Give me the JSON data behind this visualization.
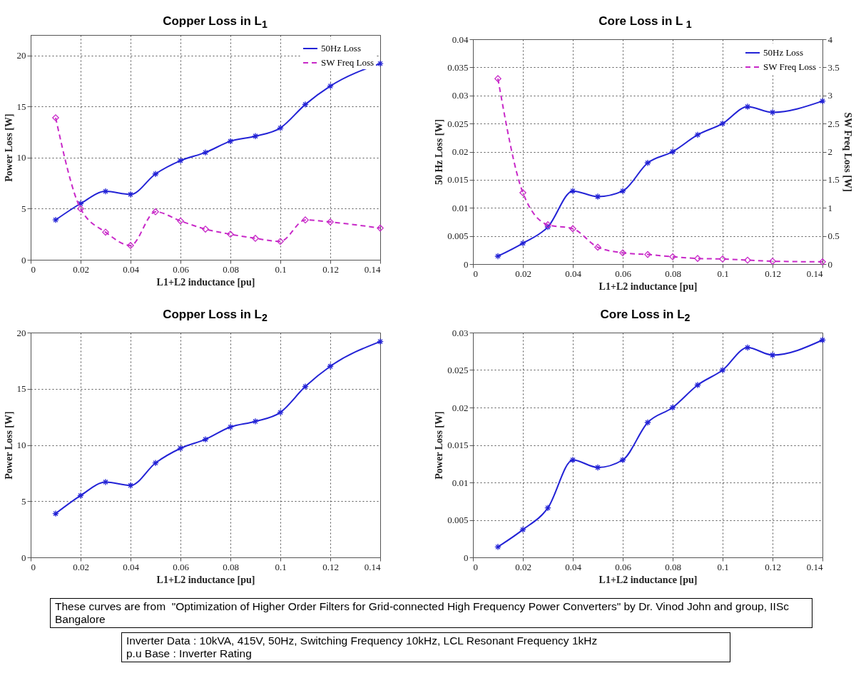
{
  "chart_data": [
    {
      "type": "line",
      "title": "Copper Loss in L$_{1}$",
      "xlabel": "L1+L2 inductance [pu]",
      "ylabel": "Power Loss [W]",
      "x": [
        0.01,
        0.02,
        0.03,
        0.04,
        0.05,
        0.06,
        0.07,
        0.08,
        0.09,
        0.1,
        0.11,
        0.12,
        0.14
      ],
      "series": [
        {
          "name": "50Hz Loss",
          "color": "#2323d6",
          "marker": "cross",
          "line_style": "solid",
          "values": [
            3.9,
            5.5,
            6.7,
            6.4,
            8.4,
            9.7,
            10.5,
            11.6,
            12.1,
            12.9,
            15.2,
            17.0,
            19.2
          ]
        },
        {
          "name": "SW Freq Loss",
          "color": "#c829c8",
          "marker": "diamond",
          "line_style": "dashed",
          "values": [
            13.9,
            5.0,
            2.7,
            1.4,
            4.7,
            3.8,
            3.0,
            2.5,
            2.1,
            1.8,
            3.9,
            3.7,
            3.1
          ]
        }
      ],
      "xlim": [
        0,
        0.14
      ],
      "xticks": [
        0,
        0.02,
        0.04,
        0.06,
        0.08,
        0.1,
        0.12,
        0.14
      ],
      "ylim": [
        0,
        22
      ],
      "yticks": [
        0,
        5,
        10,
        15,
        20
      ],
      "grid": true,
      "legend": "top right",
      "annotations": [
        "These curves are from  \"Optimization of Higher Order Filters for Grid-connected High Frequency Power Converters\" by Dr. Vinod John and group, IISc Bangalore",
        "Inverter Data : 10kVA, 415V, 50Hz, Switching Frequency 10kHz, LCL Resonant Frequency 1kHz\np.u Base : Inverter Rating"
      ]
    },
    {
      "type": "line",
      "title": "Core Loss in L $_{1}$",
      "xlabel": "L1+L2 inductance [pu]",
      "ylabel": "50 Hz Loss [W]",
      "y2label": "SW Freq Loss [W]",
      "x": [
        0.01,
        0.02,
        0.03,
        0.04,
        0.05,
        0.06,
        0.07,
        0.08,
        0.09,
        0.1,
        0.11,
        0.12,
        0.14
      ],
      "series": [
        {
          "name": "50Hz Loss",
          "color": "#2323d6",
          "marker": "cross",
          "line_style": "solid",
          "values": [
            0.0014,
            0.0037,
            0.0066,
            0.013,
            0.012,
            0.013,
            0.018,
            0.02,
            0.023,
            0.025,
            0.028,
            0.027,
            0.029
          ]
        },
        {
          "name": "SW Freq Loss",
          "color": "#c829c8",
          "marker": "diamond",
          "line_style": "dashed",
          "axis": "y2",
          "values": [
            3.3,
            1.27,
            0.7,
            0.63,
            0.3,
            0.2,
            0.17,
            0.13,
            0.1,
            0.09,
            0.07,
            0.05,
            0.04
          ]
        }
      ],
      "xlim": [
        0,
        0.14
      ],
      "xticks": [
        0,
        0.02,
        0.04,
        0.06,
        0.08,
        0.1,
        0.12,
        0.14
      ],
      "ylim": [
        0,
        0.04
      ],
      "yticks": [
        0,
        0.005,
        0.01,
        0.015,
        0.02,
        0.025,
        0.03,
        0.035,
        0.04
      ],
      "y2lim": [
        0,
        4
      ],
      "y2ticks": [
        0,
        0.5,
        1,
        1.5,
        2,
        2.5,
        3,
        3.5,
        4
      ],
      "grid": true,
      "legend": "top right"
    },
    {
      "type": "line",
      "title": "Copper Loss in L$_{2}$",
      "xlabel": "L1+L2 inductance [pu]",
      "ylabel": "Power Loss [W]",
      "x": [
        0.01,
        0.02,
        0.03,
        0.04,
        0.05,
        0.06,
        0.07,
        0.08,
        0.09,
        0.1,
        0.11,
        0.12,
        0.14
      ],
      "series": [
        {
          "color": "#2323d6",
          "marker": "cross",
          "line_style": "solid",
          "values": [
            3.9,
            5.5,
            6.7,
            6.4,
            8.4,
            9.7,
            10.5,
            11.6,
            12.1,
            12.9,
            15.2,
            17.0,
            19.2
          ]
        }
      ],
      "xlim": [
        0,
        0.14
      ],
      "xticks": [
        0,
        0.02,
        0.04,
        0.06,
        0.08,
        0.1,
        0.12,
        0.14
      ],
      "ylim": [
        0,
        20
      ],
      "yticks": [
        0,
        5,
        10,
        15,
        20
      ],
      "grid": true
    },
    {
      "type": "line",
      "title": "Core Loss in L$_{2}$",
      "xlabel": "L1+L2 inductance [pu]",
      "ylabel": "Power Loss [W]",
      "x": [
        0.01,
        0.02,
        0.03,
        0.04,
        0.05,
        0.06,
        0.07,
        0.08,
        0.09,
        0.1,
        0.11,
        0.12,
        0.14
      ],
      "series": [
        {
          "color": "#2323d6",
          "marker": "cross",
          "line_style": "solid",
          "values": [
            0.0014,
            0.0037,
            0.0066,
            0.013,
            0.012,
            0.013,
            0.018,
            0.02,
            0.023,
            0.025,
            0.028,
            0.027,
            0.029
          ]
        }
      ],
      "xlim": [
        0,
        0.14
      ],
      "xticks": [
        0,
        0.02,
        0.04,
        0.06,
        0.08,
        0.1,
        0.12,
        0.14
      ],
      "ylim": [
        0,
        0.03
      ],
      "yticks": [
        0,
        0.005,
        0.01,
        0.015,
        0.02,
        0.025,
        0.03
      ],
      "grid": true
    }
  ]
}
